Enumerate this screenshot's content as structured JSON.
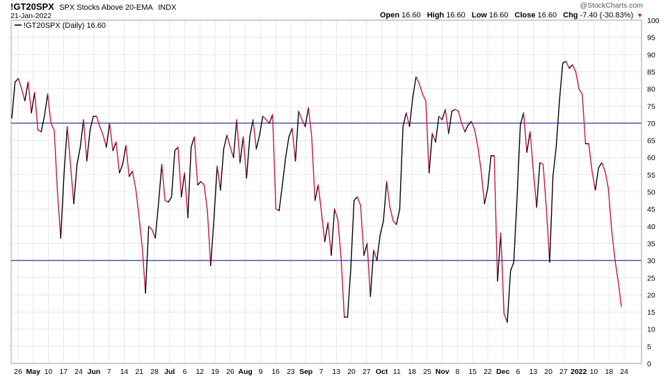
{
  "header": {
    "symbol": "!GT20SPX",
    "description": "SPX Stocks Above 20-EMA",
    "exchange": "INDX",
    "date": "21-Jan-2022",
    "credit": "@StockCharts.com",
    "open_label": "Open",
    "open_value": "16.60",
    "high_label": "High",
    "high_value": "16.60",
    "low_label": "Low",
    "low_value": "16.60",
    "close_label": "Close",
    "close_value": "16.60",
    "chg_label": "Chg",
    "chg_value": "-7.40 (-30.83%)",
    "chg_icon": "down-triangle-icon"
  },
  "colors": {
    "up": "#000000",
    "down": "#c8143c",
    "reference_line": "#000080",
    "grid": "#d9d9d9",
    "frame": "#888888"
  },
  "chart_data": {
    "type": "line",
    "legend": "!GT20SPX (Daily) 16.60",
    "y_ticks": [
      0,
      5,
      10,
      15,
      20,
      25,
      30,
      35,
      40,
      45,
      50,
      55,
      60,
      65,
      70,
      75,
      80,
      85,
      90,
      95,
      100
    ],
    "ylim": [
      0,
      100
    ],
    "reference_lines": [
      70,
      30
    ],
    "grid": true,
    "x_ticks": [
      {
        "label": "26",
        "bold": false
      },
      {
        "label": "May",
        "bold": true
      },
      {
        "label": "10",
        "bold": false
      },
      {
        "label": "17",
        "bold": false
      },
      {
        "label": "24",
        "bold": false
      },
      {
        "label": "Jun",
        "bold": true
      },
      {
        "label": "7",
        "bold": false
      },
      {
        "label": "14",
        "bold": false
      },
      {
        "label": "21",
        "bold": false
      },
      {
        "label": "28",
        "bold": false
      },
      {
        "label": "Jul",
        "bold": true
      },
      {
        "label": "6",
        "bold": false
      },
      {
        "label": "12",
        "bold": false
      },
      {
        "label": "19",
        "bold": false
      },
      {
        "label": "26",
        "bold": false
      },
      {
        "label": "Aug",
        "bold": true
      },
      {
        "label": "9",
        "bold": false
      },
      {
        "label": "16",
        "bold": false
      },
      {
        "label": "23",
        "bold": false
      },
      {
        "label": "Sep",
        "bold": true
      },
      {
        "label": "7",
        "bold": false
      },
      {
        "label": "13",
        "bold": false
      },
      {
        "label": "20",
        "bold": false
      },
      {
        "label": "27",
        "bold": false
      },
      {
        "label": "Oct",
        "bold": true
      },
      {
        "label": "11",
        "bold": false
      },
      {
        "label": "18",
        "bold": false
      },
      {
        "label": "25",
        "bold": false
      },
      {
        "label": "Nov",
        "bold": true
      },
      {
        "label": "8",
        "bold": false
      },
      {
        "label": "15",
        "bold": false
      },
      {
        "label": "22",
        "bold": false
      },
      {
        "label": "Dec",
        "bold": true
      },
      {
        "label": "6",
        "bold": false
      },
      {
        "label": "13",
        "bold": false
      },
      {
        "label": "20",
        "bold": false
      },
      {
        "label": "27",
        "bold": false
      },
      {
        "label": "2022",
        "bold": true
      },
      {
        "label": "10",
        "bold": false
      },
      {
        "label": "18",
        "bold": false
      },
      {
        "label": "24",
        "bold": false
      }
    ],
    "series": [
      {
        "name": "!GT20SPX (Daily)",
        "values": [
          71.5,
          82,
          83,
          80,
          76.5,
          82,
          73,
          79,
          68,
          67.5,
          72,
          78.5,
          70,
          68,
          50,
          36.5,
          55,
          69,
          58,
          46.5,
          58,
          63,
          71,
          59,
          68,
          72,
          72,
          69,
          66.5,
          63,
          70,
          62,
          64.5,
          55.5,
          58,
          63.5,
          54.5,
          56,
          51,
          43,
          34,
          20.5,
          40,
          39,
          36.5,
          46.5,
          58,
          47.5,
          47,
          48.5,
          62,
          63,
          48.5,
          55.5,
          42.5,
          63,
          66,
          52,
          53,
          52,
          44.5,
          28.5,
          42,
          57.5,
          50.5,
          62.5,
          66.5,
          63,
          60,
          71,
          58.5,
          66,
          54,
          66,
          71,
          62.5,
          66.5,
          72,
          71,
          70,
          72.5,
          45,
          44.5,
          52,
          60,
          66,
          68.5,
          59,
          73.5,
          71,
          69,
          74.5,
          66,
          47.5,
          52,
          44,
          35.5,
          41,
          31.5,
          45,
          42,
          31,
          13.5,
          13.5,
          28,
          47.5,
          48.5,
          46,
          31.5,
          35,
          19.5,
          33,
          30,
          37.5,
          41.5,
          53,
          45.5,
          41.5,
          40.5,
          45,
          69,
          73,
          69,
          77.5,
          83.5,
          81.5,
          78.5,
          76.5,
          55.5,
          67,
          64.5,
          72,
          71,
          74,
          67,
          73.5,
          74,
          73.5,
          70,
          67.5,
          69.5,
          70.5,
          68,
          63,
          56,
          46.5,
          51,
          60.5,
          60.5,
          24,
          38,
          14.5,
          12,
          27,
          29.5,
          48.5,
          69.5,
          73,
          61.5,
          67.5,
          56,
          45.5,
          58.5,
          58,
          45,
          29.5,
          54.5,
          63,
          76.5,
          87.5,
          88,
          86,
          87,
          85,
          80,
          78.5,
          64,
          64,
          56,
          50.5,
          57,
          58.5,
          56,
          51,
          39,
          30.5,
          24,
          16.6
        ]
      }
    ]
  }
}
